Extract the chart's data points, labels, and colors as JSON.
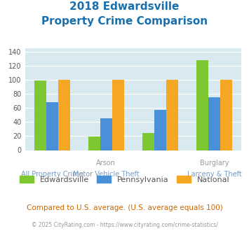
{
  "title_line1": "2018 Edwardsville",
  "title_line2": "Property Crime Comparison",
  "groups": [
    {
      "label": "All Property Crime",
      "edwardsville": 99,
      "pennsylvania": 68,
      "national": 100
    },
    {
      "label": "Arson\nMotor Vehicle Theft",
      "edwardsville": 19,
      "pennsylvania": 45,
      "national": 100
    },
    {
      "label": "Burglary",
      "edwardsville": 24,
      "pennsylvania": 57,
      "national": 100
    },
    {
      "label": "Larceny & Theft",
      "edwardsville": 128,
      "pennsylvania": 75,
      "national": 100
    }
  ],
  "top_labels": [
    "",
    "Arson",
    "",
    "Burglary"
  ],
  "bot_labels": [
    "All Property Crime",
    "Motor Vehicle Theft",
    "",
    "Larceny & Theft"
  ],
  "color_edwardsville": "#7dc832",
  "color_pennsylvania": "#4a90d9",
  "color_national": "#f5a623",
  "ylim": [
    0,
    145
  ],
  "yticks": [
    0,
    20,
    40,
    60,
    80,
    100,
    120,
    140
  ],
  "plot_bg": "#d8eaf0",
  "title_color": "#1a6faf",
  "top_label_color": "#999999",
  "bot_label_color": "#7a9abf",
  "footer_text": "Compared to U.S. average. (U.S. average equals 100)",
  "copyright_text": "© 2025 CityRating.com - https://www.cityrating.com/crime-statistics/",
  "footer_color": "#cc6600",
  "copyright_color": "#999999",
  "legend_labels": [
    "Edwardsville",
    "Pennsylvania",
    "National"
  ],
  "legend_text_color": "#555555"
}
